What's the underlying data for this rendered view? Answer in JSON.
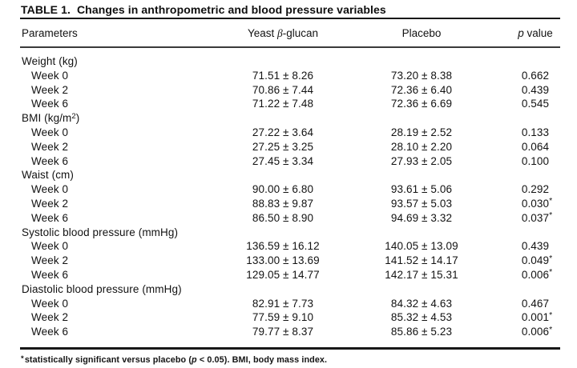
{
  "table": {
    "title": "TABLE 1.  Changes in anthropometric and blood pressure variables",
    "header": {
      "parameters": "Parameters",
      "yeast_pre": "Yeast ",
      "yeast_it": "β",
      "yeast_post": "-glucan",
      "placebo": "Placebo",
      "p_it": "p",
      "p_post": " value"
    },
    "sections": [
      {
        "label_pre": "Weight (kg)",
        "label_sup": "",
        "label_post": "",
        "rows": [
          {
            "label": "Week 0",
            "yeast": "71.51 ± 8.26",
            "placebo": "73.20 ± 8.38",
            "p": "0.662",
            "sig": false
          },
          {
            "label": "Week 2",
            "yeast": "70.86 ± 7.44",
            "placebo": "72.36 ± 6.40",
            "p": "0.439",
            "sig": false
          },
          {
            "label": "Week 6",
            "yeast": "71.22 ± 7.48",
            "placebo": "72.36 ± 6.69",
            "p": "0.545",
            "sig": false
          }
        ]
      },
      {
        "label_pre": "BMI (kg/m",
        "label_sup": "2",
        "label_post": ")",
        "rows": [
          {
            "label": "Week 0",
            "yeast": "27.22 ± 3.64",
            "placebo": "28.19 ± 2.52",
            "p": "0.133",
            "sig": false
          },
          {
            "label": "Week 2",
            "yeast": "27.25 ± 3.25",
            "placebo": "28.10 ± 2.20",
            "p": "0.064",
            "sig": false
          },
          {
            "label": "Week 6",
            "yeast": "27.45 ± 3.34",
            "placebo": "27.93 ± 2.05",
            "p": "0.100",
            "sig": false
          }
        ]
      },
      {
        "label_pre": "Waist (cm)",
        "label_sup": "",
        "label_post": "",
        "rows": [
          {
            "label": "Week 0",
            "yeast": "90.00 ± 6.80",
            "placebo": "93.61 ± 5.06",
            "p": "0.292",
            "sig": false
          },
          {
            "label": "Week 2",
            "yeast": "88.83 ± 9.87",
            "placebo": "93.57 ± 5.03",
            "p": "0.030",
            "sig": true
          },
          {
            "label": "Week 6",
            "yeast": "86.50 ± 8.90",
            "placebo": "94.69 ± 3.32",
            "p": "0.037",
            "sig": true
          }
        ]
      },
      {
        "label_pre": "Systolic blood pressure (mmHg)",
        "label_sup": "",
        "label_post": "",
        "rows": [
          {
            "label": "Week 0",
            "yeast": "136.59 ± 16.12",
            "placebo": "140.05 ± 13.09",
            "p": "0.439",
            "sig": false
          },
          {
            "label": "Week 2",
            "yeast": "133.00 ± 13.69",
            "placebo": "141.52 ± 14.17",
            "p": "0.049",
            "sig": true
          },
          {
            "label": "Week 6",
            "yeast": "129.05 ± 14.77",
            "placebo": "142.17 ± 15.31",
            "p": "0.006",
            "sig": true
          }
        ]
      },
      {
        "label_pre": "Diastolic blood pressure (mmHg)",
        "label_sup": "",
        "label_post": "",
        "rows": [
          {
            "label": "Week 0",
            "yeast": "82.91 ± 7.73",
            "placebo": "84.32 ± 4.63",
            "p": "0.467",
            "sig": false
          },
          {
            "label": "Week 2",
            "yeast": "77.59 ± 9.10",
            "placebo": "85.32 ± 4.53",
            "p": "0.001",
            "sig": true
          },
          {
            "label": "Week 6",
            "yeast": "79.77 ± 8.37",
            "placebo": "85.86 ± 5.23",
            "p": "0.006",
            "sig": true
          }
        ]
      }
    ],
    "footnote": {
      "star": "*",
      "pre": "statistically significant versus placebo (",
      "it": "p",
      "post": " < 0.05). BMI, body mass index."
    },
    "colors": {
      "background": "#ffffff",
      "text": "#121212",
      "rule": "#181818"
    }
  }
}
